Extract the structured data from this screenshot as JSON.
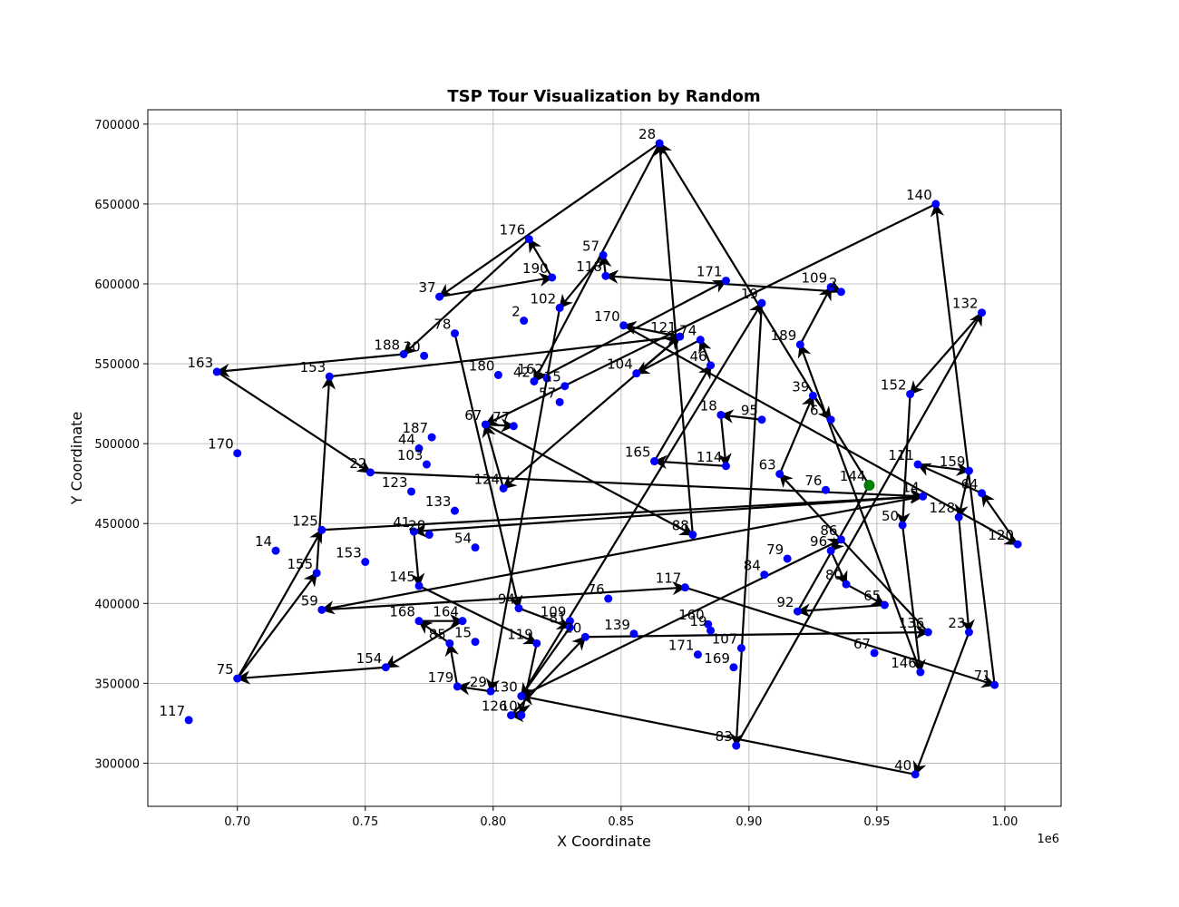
{
  "chart_data": {
    "type": "scatter",
    "title": "TSP Tour Visualization by Random",
    "xlabel": "X Coordinate",
    "ylabel": "Y Coordinate",
    "x_offset_label": "1e6",
    "xlim": [
      665000,
      1022000
    ],
    "ylim": [
      273000,
      709000
    ],
    "xticks": [
      {
        "value": 700000,
        "label": "0.70"
      },
      {
        "value": 750000,
        "label": "0.75"
      },
      {
        "value": 800000,
        "label": "0.80"
      },
      {
        "value": 850000,
        "label": "0.85"
      },
      {
        "value": 900000,
        "label": "0.90"
      },
      {
        "value": 950000,
        "label": "0.95"
      },
      {
        "value": 1000000,
        "label": "1.00"
      }
    ],
    "yticks": [
      {
        "value": 300000,
        "label": "300000"
      },
      {
        "value": 350000,
        "label": "350000"
      },
      {
        "value": 400000,
        "label": "400000"
      },
      {
        "value": 450000,
        "label": "450000"
      },
      {
        "value": 500000,
        "label": "500000"
      },
      {
        "value": 550000,
        "label": "550000"
      },
      {
        "value": 600000,
        "label": "600000"
      },
      {
        "value": 650000,
        "label": "650000"
      },
      {
        "value": 700000,
        "label": "700000"
      }
    ],
    "grid": true,
    "point_color": "#0000ff",
    "start_color": "#008000",
    "edge_color": "#000000",
    "start_edge_color": "#0000ff",
    "points": [
      {
        "id": "28",
        "x": 865000,
        "y": 688000
      },
      {
        "id": "140",
        "x": 973000,
        "y": 650000
      },
      {
        "id": "176",
        "x": 814000,
        "y": 628000
      },
      {
        "id": "57",
        "x": 843000,
        "y": 618000
      },
      {
        "id": "118",
        "x": 844000,
        "y": 605000
      },
      {
        "id": "190",
        "x": 823000,
        "y": 604000
      },
      {
        "id": "171",
        "x": 891000,
        "y": 602000
      },
      {
        "id": "109",
        "x": 932000,
        "y": 598000
      },
      {
        "id": "2",
        "x": 936000,
        "y": 595000
      },
      {
        "id": "37",
        "x": 779000,
        "y": 592000
      },
      {
        "id": "19",
        "x": 905000,
        "y": 588000
      },
      {
        "id": "102",
        "x": 826000,
        "y": 585000
      },
      {
        "id": "132",
        "x": 991000,
        "y": 582000
      },
      {
        "id": "2",
        "x": 812000,
        "y": 577000
      },
      {
        "id": "170",
        "x": 851000,
        "y": 574000
      },
      {
        "id": "78",
        "x": 785000,
        "y": 569000
      },
      {
        "id": "121",
        "x": 873000,
        "y": 567000
      },
      {
        "id": "74",
        "x": 881000,
        "y": 565000
      },
      {
        "id": "189",
        "x": 920000,
        "y": 562000
      },
      {
        "id": "188",
        "x": 765000,
        "y": 556000
      },
      {
        "id": "30",
        "x": 773000,
        "y": 555000
      },
      {
        "id": "46",
        "x": 885000,
        "y": 549000
      },
      {
        "id": "163",
        "x": 692000,
        "y": 545000
      },
      {
        "id": "104",
        "x": 856000,
        "y": 544000
      },
      {
        "id": "180",
        "x": 802000,
        "y": 543000
      },
      {
        "id": "153",
        "x": 736000,
        "y": 542000
      },
      {
        "id": "162",
        "x": 821000,
        "y": 541000
      },
      {
        "id": "42",
        "x": 816000,
        "y": 539000
      },
      {
        "id": "15",
        "x": 828000,
        "y": 536000
      },
      {
        "id": "39",
        "x": 925000,
        "y": 530000
      },
      {
        "id": "152",
        "x": 963000,
        "y": 531000
      },
      {
        "id": "57",
        "x": 826000,
        "y": 526000
      },
      {
        "id": "18",
        "x": 889000,
        "y": 518000
      },
      {
        "id": "61",
        "x": 932000,
        "y": 515000
      },
      {
        "id": "95",
        "x": 905000,
        "y": 515000
      },
      {
        "id": "67",
        "x": 797000,
        "y": 512000
      },
      {
        "id": "77",
        "x": 808000,
        "y": 511000
      },
      {
        "id": "170",
        "x": 700000,
        "y": 494000
      },
      {
        "id": "187",
        "x": 776000,
        "y": 504000
      },
      {
        "id": "44",
        "x": 771000,
        "y": 497000
      },
      {
        "id": "111",
        "x": 966000,
        "y": 487000
      },
      {
        "id": "159",
        "x": 986000,
        "y": 483000
      },
      {
        "id": "165",
        "x": 863000,
        "y": 489000
      },
      {
        "id": "103",
        "x": 774000,
        "y": 487000
      },
      {
        "id": "22",
        "x": 752000,
        "y": 482000
      },
      {
        "id": "63",
        "x": 912000,
        "y": 481000
      },
      {
        "id": "114",
        "x": 891000,
        "y": 486000
      },
      {
        "id": "124",
        "x": 804000,
        "y": 472000
      },
      {
        "id": "123",
        "x": 768000,
        "y": 470000
      },
      {
        "id": "64",
        "x": 991000,
        "y": 469000
      },
      {
        "id": "144",
        "x": 947000,
        "y": 474000,
        "start": true
      },
      {
        "id": "76",
        "x": 930000,
        "y": 471000
      },
      {
        "id": "14",
        "x": 968000,
        "y": 467000
      },
      {
        "id": "133",
        "x": 785000,
        "y": 458000
      },
      {
        "id": "128",
        "x": 982000,
        "y": 454000
      },
      {
        "id": "125",
        "x": 733000,
        "y": 446000
      },
      {
        "id": "50",
        "x": 960000,
        "y": 449000
      },
      {
        "id": "41",
        "x": 769000,
        "y": 445000
      },
      {
        "id": "28",
        "x": 775000,
        "y": 443000
      },
      {
        "id": "88",
        "x": 878000,
        "y": 443000
      },
      {
        "id": "86",
        "x": 936000,
        "y": 440000
      },
      {
        "id": "120",
        "x": 1005000,
        "y": 437000
      },
      {
        "id": "14",
        "x": 715000,
        "y": 433000
      },
      {
        "id": "96",
        "x": 932000,
        "y": 433000
      },
      {
        "id": "79",
        "x": 915000,
        "y": 428000
      },
      {
        "id": "155",
        "x": 731000,
        "y": 419000
      },
      {
        "id": "153",
        "x": 750000,
        "y": 426000
      },
      {
        "id": "54",
        "x": 793000,
        "y": 435000
      },
      {
        "id": "84",
        "x": 906000,
        "y": 418000
      },
      {
        "id": "80",
        "x": 938000,
        "y": 412000
      },
      {
        "id": "145",
        "x": 771000,
        "y": 411000
      },
      {
        "id": "117",
        "x": 875000,
        "y": 410000
      },
      {
        "id": "59",
        "x": 733000,
        "y": 396000
      },
      {
        "id": "65",
        "x": 953000,
        "y": 399000
      },
      {
        "id": "94",
        "x": 810000,
        "y": 397000
      },
      {
        "id": "76",
        "x": 845000,
        "y": 403000
      },
      {
        "id": "92",
        "x": 919000,
        "y": 395000
      },
      {
        "id": "168",
        "x": 771000,
        "y": 389000
      },
      {
        "id": "164",
        "x": 788000,
        "y": 389000
      },
      {
        "id": "109",
        "x": 830000,
        "y": 389000
      },
      {
        "id": "81",
        "x": 830000,
        "y": 385000
      },
      {
        "id": "160",
        "x": 884000,
        "y": 387000
      },
      {
        "id": "136",
        "x": 970000,
        "y": 382000
      },
      {
        "id": "23",
        "x": 986000,
        "y": 382000
      },
      {
        "id": "20",
        "x": 836000,
        "y": 379000
      },
      {
        "id": "139",
        "x": 855000,
        "y": 381000
      },
      {
        "id": "19",
        "x": 885000,
        "y": 383000
      },
      {
        "id": "85",
        "x": 783000,
        "y": 375000
      },
      {
        "id": "15",
        "x": 793000,
        "y": 376000
      },
      {
        "id": "119",
        "x": 817000,
        "y": 375000
      },
      {
        "id": "107",
        "x": 897000,
        "y": 372000
      },
      {
        "id": "171",
        "x": 880000,
        "y": 368000
      },
      {
        "id": "67",
        "x": 949000,
        "y": 369000
      },
      {
        "id": "154",
        "x": 758000,
        "y": 360000
      },
      {
        "id": "169",
        "x": 894000,
        "y": 360000
      },
      {
        "id": "146",
        "x": 967000,
        "y": 357000
      },
      {
        "id": "75",
        "x": 700000,
        "y": 353000
      },
      {
        "id": "179",
        "x": 786000,
        "y": 348000
      },
      {
        "id": "29",
        "x": 799000,
        "y": 345000
      },
      {
        "id": "130",
        "x": 811000,
        "y": 342000
      },
      {
        "id": "71",
        "x": 996000,
        "y": 349000
      },
      {
        "id": "126",
        "x": 807000,
        "y": 330000
      },
      {
        "id": "10",
        "x": 811000,
        "y": 330000
      },
      {
        "id": "117",
        "x": 681000,
        "y": 327000
      },
      {
        "id": "83",
        "x": 895000,
        "y": 311000
      },
      {
        "id": "40",
        "x": 965000,
        "y": 293000
      }
    ],
    "tour": [
      "144",
      "28",
      "37",
      "190",
      "176",
      "188",
      "163",
      "22",
      "14",
      "59",
      "117",
      "71",
      "140",
      "67",
      "88",
      "28",
      "42",
      "171",
      "110",
      "75",
      "155",
      "153",
      "121",
      "170",
      "120",
      "64",
      "111",
      "159",
      "128",
      "23",
      "40",
      "130",
      "19",
      "83",
      "132",
      "152",
      "50",
      "146",
      "189",
      "109",
      "2",
      "118",
      "57",
      "102",
      "29",
      "179",
      "85",
      "168",
      "164",
      "154",
      "75",
      "125",
      "14",
      "41",
      "145",
      "119",
      "10",
      "126",
      "20",
      "136",
      "63",
      "39",
      "61",
      "5",
      "95",
      "18",
      "114",
      "165",
      "46",
      "74",
      "104",
      "121",
      "124",
      "67",
      "77",
      "12",
      "78",
      "94",
      "81",
      "130",
      "86",
      "96",
      "80",
      "65",
      "92",
      "144"
    ]
  }
}
